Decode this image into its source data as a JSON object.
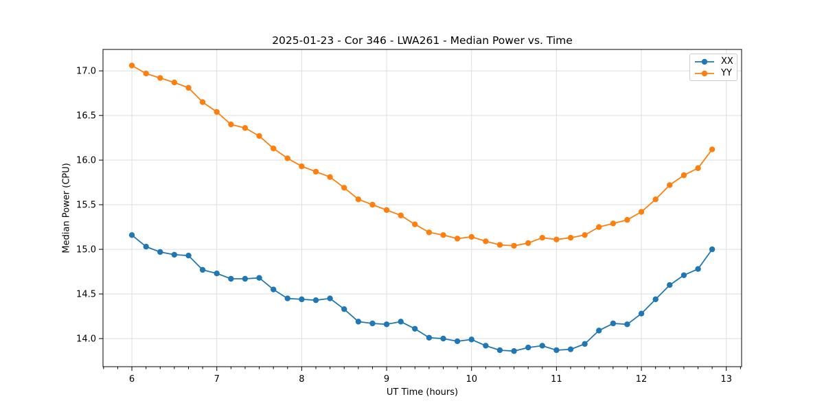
{
  "chart_data": {
    "type": "line",
    "title": "2025-01-23 - Cor 346 - LWA261 - Median Power vs. Time",
    "xlabel": "UT Time (hours)",
    "ylabel": "Median Power (CPU)",
    "x": [
      6.0,
      6.167,
      6.333,
      6.5,
      6.667,
      6.833,
      7.0,
      7.167,
      7.333,
      7.5,
      7.667,
      7.833,
      8.0,
      8.167,
      8.333,
      8.5,
      8.667,
      8.833,
      9.0,
      9.167,
      9.333,
      9.5,
      9.667,
      9.833,
      10.0,
      10.167,
      10.333,
      10.5,
      10.667,
      10.833,
      11.0,
      11.167,
      11.333,
      11.5,
      11.667,
      11.833,
      12.0,
      12.167,
      12.333,
      12.5,
      12.667,
      12.833
    ],
    "series": [
      {
        "name": "XX",
        "color": "#1f77b4",
        "values": [
          15.16,
          15.03,
          14.97,
          14.94,
          14.93,
          14.77,
          14.73,
          14.67,
          14.67,
          14.68,
          14.55,
          14.45,
          14.44,
          14.43,
          14.45,
          14.33,
          14.19,
          14.17,
          14.16,
          14.19,
          14.11,
          14.01,
          14.0,
          13.97,
          13.99,
          13.92,
          13.87,
          13.86,
          13.9,
          13.92,
          13.87,
          13.88,
          13.94,
          14.09,
          14.17,
          14.16,
          14.28,
          14.44,
          14.6,
          14.71,
          14.78,
          15.0
        ]
      },
      {
        "name": "YY",
        "color": "#ff7f0e",
        "values": [
          17.06,
          16.97,
          16.92,
          16.87,
          16.81,
          16.65,
          16.54,
          16.4,
          16.36,
          16.27,
          16.13,
          16.02,
          15.93,
          15.87,
          15.81,
          15.69,
          15.56,
          15.5,
          15.44,
          15.38,
          15.28,
          15.19,
          15.16,
          15.12,
          15.14,
          15.09,
          15.05,
          15.04,
          15.07,
          15.13,
          15.11,
          15.13,
          15.16,
          15.25,
          15.29,
          15.33,
          15.42,
          15.56,
          15.72,
          15.83,
          15.91,
          16.12
        ]
      }
    ],
    "xlim": [
      5.66,
      13.18
    ],
    "ylim": [
      13.685,
      17.24
    ],
    "xticks": [
      6,
      7,
      8,
      9,
      10,
      11,
      12,
      13
    ],
    "yticks": [
      14.0,
      14.5,
      15.0,
      15.5,
      16.0,
      16.5,
      17.0
    ],
    "x_minor_step": 0.166667,
    "grid": true,
    "legend_position": "upper right",
    "colors": {
      "grid": "#dedede",
      "spine": "#000000",
      "background": "#ffffff",
      "xx_line": "#1f77b4",
      "yy_line": "#ff7f0e"
    }
  }
}
